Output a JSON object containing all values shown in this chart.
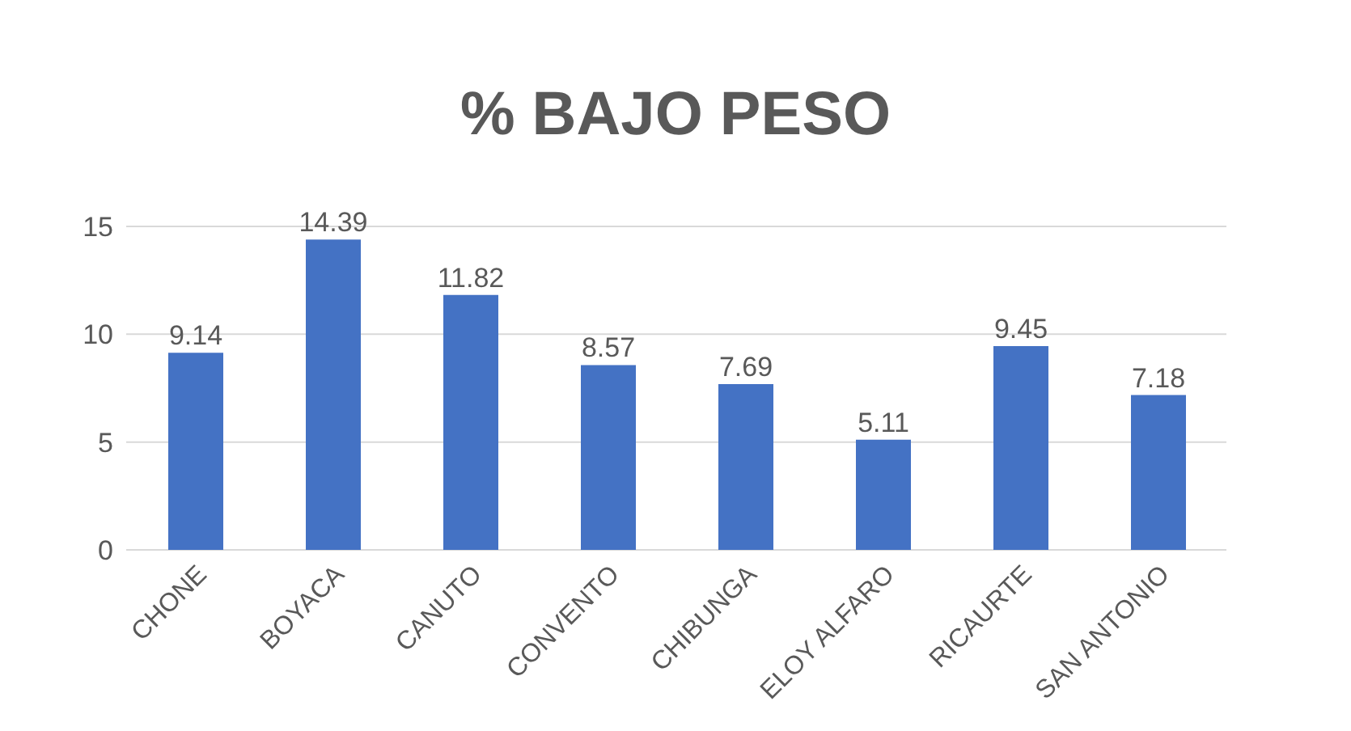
{
  "chart_data": {
    "type": "bar",
    "title": "% BAJO PESO",
    "categories": [
      "CHONE",
      "BOYACA",
      "CANUTO",
      "CONVENTO",
      "CHIBUNGA",
      "ELOY ALFARO",
      "RICAURTE",
      "SAN ANTONIO"
    ],
    "values": [
      9.14,
      14.39,
      11.82,
      8.57,
      7.69,
      5.11,
      9.45,
      7.18
    ],
    "color": "#4472c4",
    "ylim": [
      0,
      15
    ],
    "yticks": [
      0,
      5,
      10,
      15
    ],
    "grid": "y",
    "data_labels": true
  }
}
